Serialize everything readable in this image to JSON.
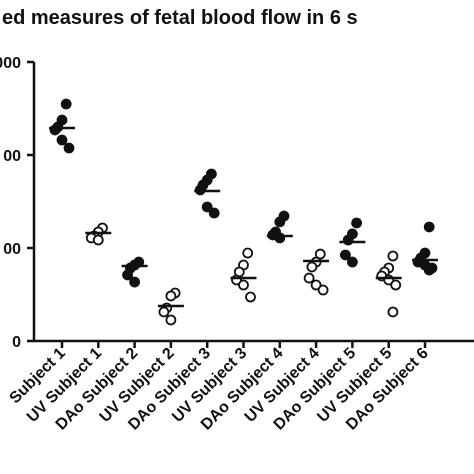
{
  "chart_data": {
    "type": "dotplot",
    "title": "ed measures of fetal blood flow in 6 s",
    "categories": [
      "Subject 1",
      "UV Subject 1",
      "DAo Subject 2",
      "UV Subject 2",
      "DAo Subject 3",
      "UV Subject 3",
      "DAo Subject 4",
      "UV Subject 4",
      "DAo Subject 5",
      "UV Subject 5",
      "DAo Subject 6"
    ],
    "points": [
      [
        2548,
        2376,
        2301,
        2269,
        2161,
        2075
      ],
      [
        1215,
        1172,
        1129,
        1108,
        1086
      ],
      [
        849,
        817,
        785,
        710,
        634
      ],
      [
        516,
        484,
        355,
        312,
        226
      ],
      [
        1796,
        1731,
        1677,
        1624,
        1441,
        1376
      ],
      [
        946,
        817,
        742,
        656,
        602,
        473
      ],
      [
        1344,
        1280,
        1172,
        1140,
        1108
      ],
      [
        935,
        849,
        796,
        677,
        602,
        548
      ],
      [
        1269,
        1151,
        1086,
        925,
        849
      ],
      [
        914,
        785,
        742,
        699,
        656,
        602,
        312
      ],
      [
        1226,
        946,
        892,
        849,
        817,
        785,
        763
      ]
    ],
    "medians": [
      2290,
      1161,
      806,
      376,
      1613,
      677,
      1129,
      860,
      1065,
      677,
      871
    ],
    "fills": [
      "#111",
      "#fff",
      "#111",
      "#fff",
      "#111",
      "#fff",
      "#111",
      "#fff",
      "#111",
      "#fff",
      "#111"
    ],
    "ylim": [
      0,
      3000
    ],
    "yticks": [
      {
        "value": 0,
        "label": "0"
      },
      {
        "value": 1000,
        "label": "00"
      },
      {
        "value": 2000,
        "label": "00"
      },
      {
        "value": 3000,
        "label": "000"
      }
    ]
  }
}
